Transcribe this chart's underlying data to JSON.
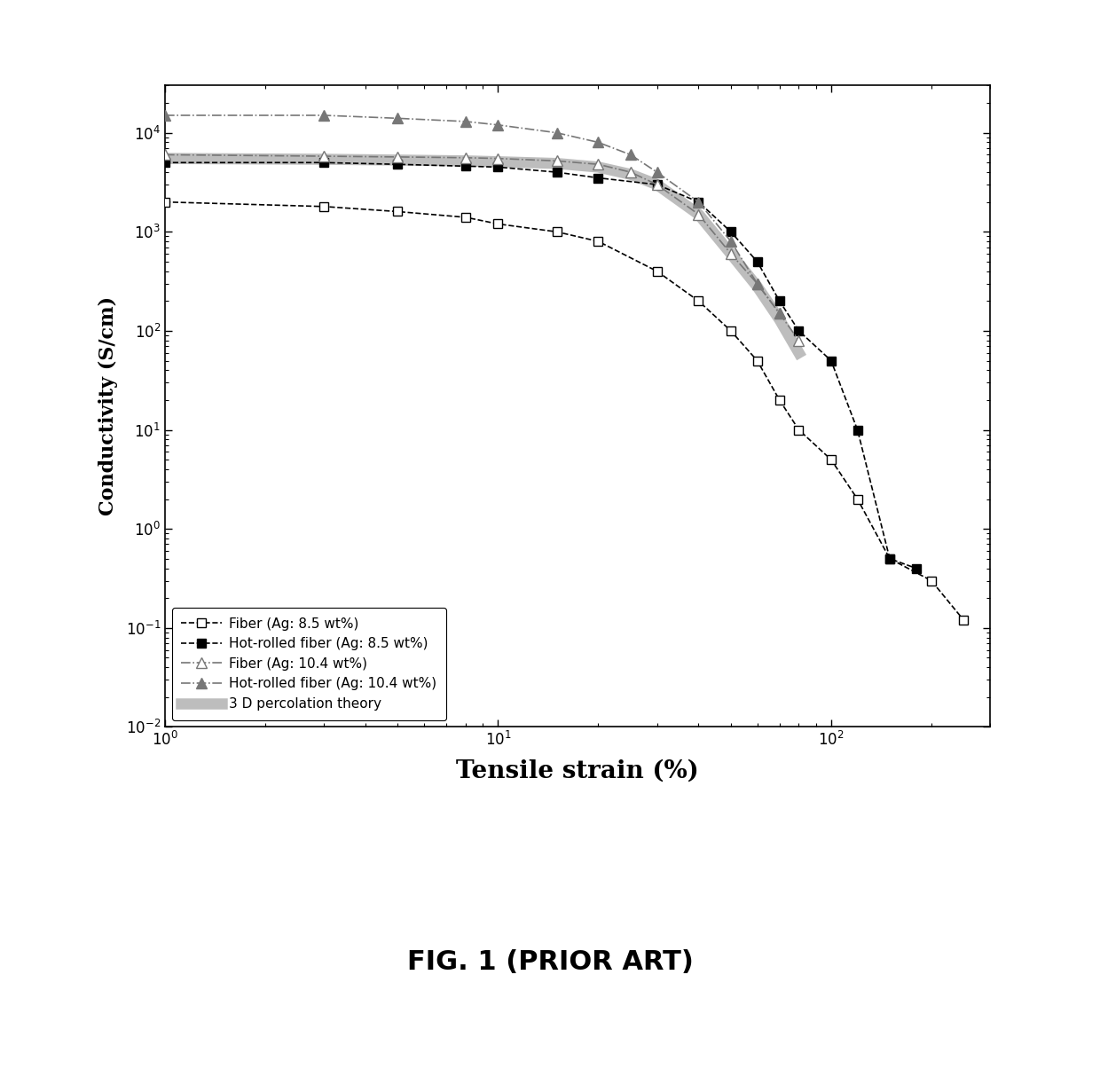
{
  "title": "FIG. 1 (PRIOR ART)",
  "xlabel": "Tensile strain (%)",
  "ylabel": "Conductivity (S/cm)",
  "xlim": [
    1,
    300
  ],
  "ylim": [
    0.01,
    30000
  ],
  "background_color": "#ffffff",
  "series": [
    {
      "label": "Fiber (Ag: 8.5 wt%)",
      "color": "#000000",
      "linestyle": "--",
      "marker": "s",
      "markerfacecolor": "white",
      "markersize": 7,
      "linewidth": 1.2,
      "alpha": 1.0,
      "x": [
        1,
        3,
        5,
        8,
        10,
        15,
        20,
        30,
        40,
        50,
        60,
        70,
        80,
        100,
        120,
        150,
        200,
        250
      ],
      "y": [
        2000,
        1800,
        1600,
        1400,
        1200,
        1000,
        800,
        400,
        200,
        100,
        50,
        20,
        10,
        5,
        2,
        0.5,
        0.3,
        0.12
      ]
    },
    {
      "label": "Hot-rolled fiber (Ag: 8.5 wt%)",
      "color": "#000000",
      "linestyle": "--",
      "marker": "s",
      "markerfacecolor": "#000000",
      "markersize": 7,
      "linewidth": 1.2,
      "alpha": 1.0,
      "x": [
        1,
        3,
        5,
        8,
        10,
        15,
        20,
        30,
        40,
        50,
        60,
        70,
        80,
        100,
        120,
        150,
        180
      ],
      "y": [
        5000,
        5000,
        4800,
        4600,
        4500,
        4000,
        3500,
        3000,
        2000,
        1000,
        500,
        200,
        100,
        50,
        10,
        0.5,
        0.4
      ]
    },
    {
      "label": "Fiber (Ag: 10.4 wt%)",
      "color": "#777777",
      "linestyle": "-.",
      "marker": "^",
      "markerfacecolor": "white",
      "markersize": 8,
      "linewidth": 1.2,
      "alpha": 1.0,
      "x": [
        1,
        3,
        5,
        8,
        10,
        15,
        20,
        25,
        30,
        40,
        50,
        60,
        70,
        80
      ],
      "y": [
        6000,
        5800,
        5700,
        5600,
        5500,
        5200,
        4800,
        4000,
        3000,
        1500,
        600,
        300,
        150,
        80
      ]
    },
    {
      "label": "Hot-rolled fiber (Ag: 10.4 wt%)",
      "color": "#777777",
      "linestyle": "-.",
      "marker": "^",
      "markerfacecolor": "#777777",
      "markersize": 8,
      "linewidth": 1.2,
      "alpha": 1.0,
      "x": [
        1,
        3,
        5,
        8,
        10,
        15,
        20,
        25,
        30,
        40,
        50,
        60,
        70
      ],
      "y": [
        15000,
        15000,
        14000,
        13000,
        12000,
        10000,
        8000,
        6000,
        4000,
        2000,
        800,
        300,
        150
      ]
    },
    {
      "label": "3 D percolation theory",
      "color": "#888888",
      "linestyle": "-",
      "marker": null,
      "markerfacecolor": null,
      "markersize": 0,
      "linewidth": 9,
      "alpha": 0.55,
      "x": [
        1,
        3,
        5,
        8,
        10,
        15,
        20,
        25,
        30,
        40,
        50,
        60,
        70,
        80
      ],
      "y": [
        5500,
        5400,
        5300,
        5200,
        5100,
        4900,
        4500,
        3800,
        3000,
        1500,
        600,
        280,
        130,
        60
      ]
    }
  ]
}
